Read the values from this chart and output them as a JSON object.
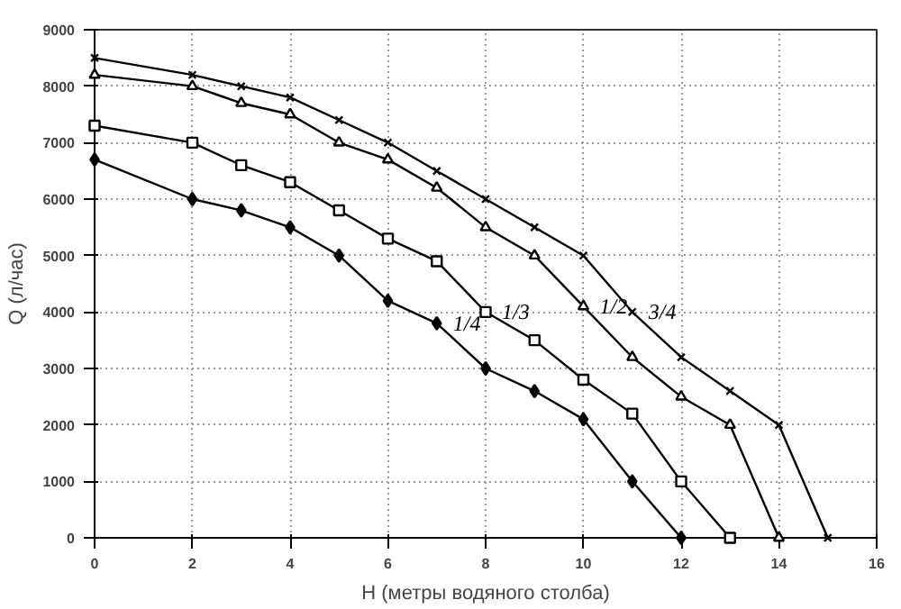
{
  "chart_data": {
    "type": "line",
    "xlabel": "H (метры водяного столба)",
    "ylabel": "Q (л/час)",
    "xlim": [
      0,
      16
    ],
    "xticks": [
      0,
      2,
      4,
      6,
      8,
      10,
      12,
      14,
      16
    ],
    "ylim": [
      0,
      9000
    ],
    "yticks": [
      0,
      1000,
      2000,
      3000,
      4000,
      5000,
      6000,
      7000,
      8000,
      9000
    ],
    "grid": true,
    "line_style": "solid",
    "series": [
      {
        "name": "1/4",
        "color": "#000000",
        "marker": "diamond",
        "x": [
          0,
          2,
          3,
          4,
          5,
          6,
          7,
          8,
          9,
          10,
          11,
          12
        ],
        "values": [
          6700,
          6000,
          5800,
          5500,
          5000,
          4200,
          3800,
          3000,
          2600,
          2100,
          1000,
          0
        ]
      },
      {
        "name": "1/3",
        "color": "#000000",
        "marker": "square",
        "x": [
          0,
          2,
          3,
          4,
          5,
          6,
          7,
          8,
          9,
          10,
          11,
          12,
          13
        ],
        "values": [
          7300,
          7000,
          6600,
          6300,
          5800,
          5300,
          4900,
          4000,
          3500,
          2800,
          2200,
          1000,
          0
        ]
      },
      {
        "name": "1/2",
        "color": "#000000",
        "marker": "triangle",
        "x": [
          0,
          2,
          3,
          4,
          5,
          6,
          7,
          8,
          9,
          10,
          11,
          12,
          13,
          14
        ],
        "values": [
          8200,
          8000,
          7700,
          7500,
          7000,
          6700,
          6200,
          5500,
          5000,
          4100,
          3200,
          2500,
          2000,
          0
        ]
      },
      {
        "name": "3/4",
        "color": "#000000",
        "marker": "cross",
        "x": [
          0,
          2,
          3,
          4,
          5,
          6,
          7,
          8,
          9,
          10,
          11,
          12,
          13,
          14,
          15
        ],
        "values": [
          8500,
          8200,
          8000,
          7800,
          7400,
          7000,
          6500,
          6000,
          5500,
          5000,
          4000,
          3200,
          2600,
          2000,
          0
        ]
      }
    ]
  }
}
